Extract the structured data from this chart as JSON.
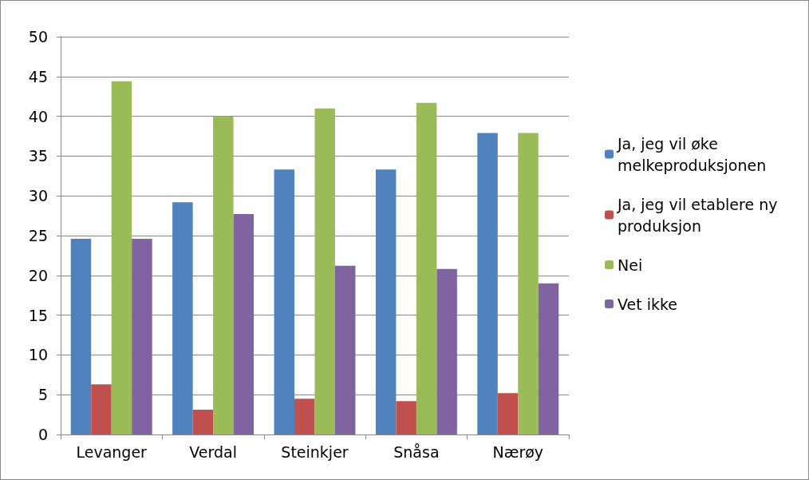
{
  "chart_data": {
    "type": "bar",
    "categories": [
      "Levanger",
      "Verdal",
      "Steinkjer",
      "Snåsa",
      "Nærøy"
    ],
    "series": [
      {
        "name": "Ja, jeg vil øke melkeproduksjonen",
        "color": "#4f81bd",
        "values": [
          24.6,
          29.2,
          33.3,
          33.3,
          37.9
        ]
      },
      {
        "name": "Ja, jeg vil etablere ny produksjon",
        "color": "#c0504d",
        "values": [
          6.3,
          3.1,
          4.5,
          4.2,
          5.2
        ]
      },
      {
        "name": "Nei",
        "color": "#9bbb59",
        "values": [
          44.4,
          40,
          41,
          41.7,
          37.9
        ]
      },
      {
        "name": "Vet ikke",
        "color": "#8064a2",
        "values": [
          24.6,
          27.7,
          21.2,
          20.8,
          19
        ]
      }
    ],
    "ylim": [
      0,
      50
    ],
    "yticks": [
      0,
      5,
      10,
      15,
      20,
      25,
      30,
      35,
      40,
      45,
      50
    ],
    "grid": "y",
    "legend": "right"
  }
}
